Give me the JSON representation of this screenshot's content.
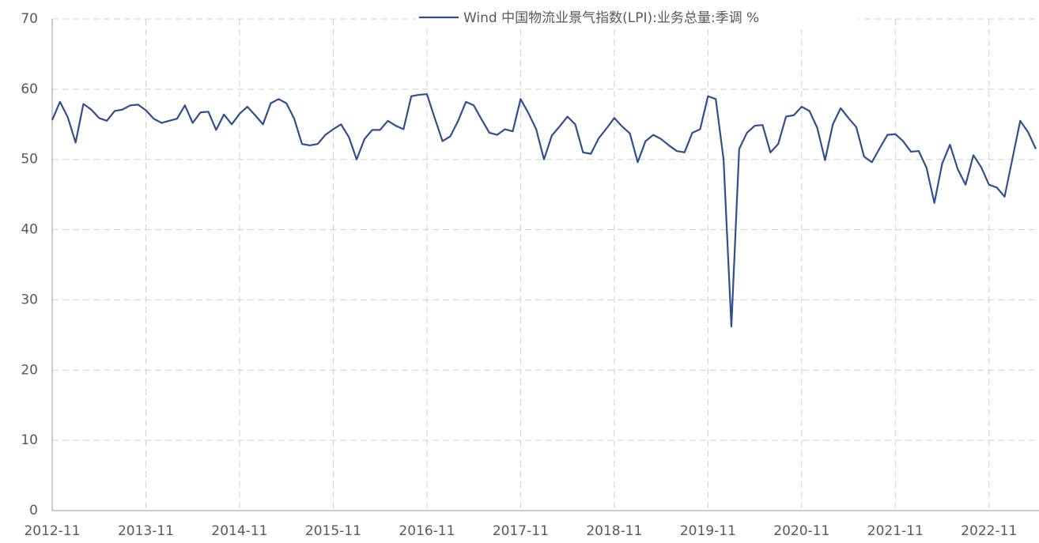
{
  "chart_data": {
    "type": "line",
    "x": [
      "2012-11",
      "2012-12",
      "2013-01",
      "2013-02",
      "2013-03",
      "2013-04",
      "2013-05",
      "2013-06",
      "2013-07",
      "2013-08",
      "2013-09",
      "2013-10",
      "2013-11",
      "2013-12",
      "2014-01",
      "2014-02",
      "2014-03",
      "2014-04",
      "2014-05",
      "2014-06",
      "2014-07",
      "2014-08",
      "2014-09",
      "2014-10",
      "2014-11",
      "2014-12",
      "2015-01",
      "2015-02",
      "2015-03",
      "2015-04",
      "2015-05",
      "2015-06",
      "2015-07",
      "2015-08",
      "2015-09",
      "2015-10",
      "2015-11",
      "2015-12",
      "2016-01",
      "2016-02",
      "2016-03",
      "2016-04",
      "2016-05",
      "2016-06",
      "2016-07",
      "2016-08",
      "2016-09",
      "2016-10",
      "2016-11",
      "2016-12",
      "2017-01",
      "2017-02",
      "2017-03",
      "2017-04",
      "2017-05",
      "2017-06",
      "2017-07",
      "2017-08",
      "2017-09",
      "2017-10",
      "2017-11",
      "2017-12",
      "2018-01",
      "2018-02",
      "2018-03",
      "2018-04",
      "2018-05",
      "2018-06",
      "2018-07",
      "2018-08",
      "2018-09",
      "2018-10",
      "2018-11",
      "2018-12",
      "2019-01",
      "2019-02",
      "2019-03",
      "2019-04",
      "2019-05",
      "2019-06",
      "2019-07",
      "2019-08",
      "2019-09",
      "2019-10",
      "2019-11",
      "2019-12",
      "2020-01",
      "2020-02",
      "2020-03",
      "2020-04",
      "2020-05",
      "2020-06",
      "2020-07",
      "2020-08",
      "2020-09",
      "2020-10",
      "2020-11",
      "2020-12",
      "2021-01",
      "2021-02",
      "2021-03",
      "2021-04",
      "2021-05",
      "2021-06",
      "2021-07",
      "2021-08",
      "2021-09",
      "2021-10",
      "2021-11",
      "2021-12",
      "2022-01",
      "2022-02",
      "2022-03",
      "2022-04",
      "2022-05",
      "2022-06",
      "2022-07",
      "2022-08",
      "2022-09",
      "2022-10",
      "2022-11",
      "2022-12",
      "2023-01",
      "2023-02",
      "2023-03",
      "2023-04",
      "2023-05"
    ],
    "series": [
      {
        "name": "Wind 中国物流业景气指数(LPI):业务总量:季调 %",
        "color": "#2f4f8f",
        "values": [
          55.6,
          58.2,
          56,
          52.4,
          57.9,
          57.1,
          55.9,
          55.5,
          56.9,
          57.1,
          57.7,
          57.8,
          57,
          55.8,
          55.2,
          55.5,
          55.8,
          57.7,
          55.2,
          56.7,
          56.8,
          54.2,
          56.4,
          55,
          56.5,
          57.5,
          56.3,
          55,
          58,
          58.6,
          58,
          55.8,
          52.2,
          52,
          52.2,
          53.5,
          54.3,
          55,
          53.2,
          50,
          52.9,
          54.2,
          54.2,
          55.5,
          54.8,
          54.3,
          59,
          59.2,
          59.3,
          55.9,
          52.6,
          53.3,
          55.5,
          58.2,
          57.7,
          55.7,
          53.8,
          53.5,
          54.3,
          54,
          58.6,
          56.6,
          54.3,
          50,
          53.4,
          54.7,
          56.1,
          55,
          51,
          50.8,
          53,
          54.4,
          55.9,
          54.7,
          53.7,
          49.6,
          52.6,
          53.5,
          52.9,
          52,
          51.2,
          51,
          53.8,
          54.3,
          59,
          58.6,
          50,
          26.2,
          51.5,
          53.8,
          54.8,
          54.9,
          51,
          52.2,
          56.1,
          56.3,
          57.5,
          56.9,
          54.5,
          49.9,
          55,
          57.3,
          55.9,
          54.6,
          50.4,
          49.6,
          51.6,
          53.5,
          53.6,
          52.6,
          51.1,
          51.2,
          48.8,
          43.8,
          49.4,
          52.1,
          48.6,
          46.4,
          50.6,
          48.9,
          46.4,
          46,
          44.7,
          50.1,
          55.5,
          53.9,
          51.5
        ]
      }
    ],
    "xlim": [
      "2012-11",
      "2023-05"
    ],
    "xticks": [
      "2012-11",
      "2013-11",
      "2014-11",
      "2015-11",
      "2016-11",
      "2017-11",
      "2018-11",
      "2019-11",
      "2020-11",
      "2021-11",
      "2022-11"
    ],
    "ylim": [
      0,
      70
    ],
    "yticks": [
      0,
      10,
      20,
      30,
      40,
      50,
      60,
      70
    ],
    "grid": true,
    "legend": "top"
  }
}
